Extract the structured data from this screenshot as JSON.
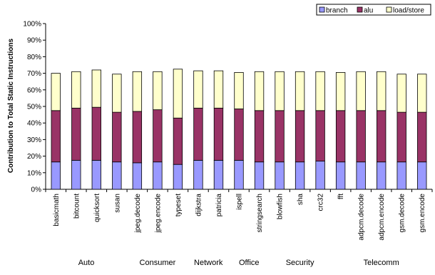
{
  "chart_data": {
    "type": "bar",
    "stacked": true,
    "ylabel": "Contribution to Total Static Instructions",
    "ylim": [
      0,
      100
    ],
    "yticks": [
      "0%",
      "10%",
      "20%",
      "30%",
      "40%",
      "50%",
      "60%",
      "70%",
      "80%",
      "90%",
      "100%"
    ],
    "grid": false,
    "legend_position": "top-right",
    "categories": [
      "basicmath",
      "bitcount",
      "quicksort",
      "susan",
      "jpeg.decode",
      "jpeg.encode",
      "typeset",
      "dijkstra",
      "patricia",
      "ispell",
      "stringsearch",
      "blowfish",
      "sha",
      "crc32",
      "fft",
      "adpcm.decode",
      "adpcm.encode",
      "gsm.decode",
      "gsm.encode"
    ],
    "groups": [
      {
        "label": "Auto",
        "start": 0,
        "end": 3
      },
      {
        "label": "Consumer",
        "start": 4,
        "end": 6
      },
      {
        "label": "Network",
        "start": 7,
        "end": 8
      },
      {
        "label": "Office",
        "start": 9,
        "end": 10
      },
      {
        "label": "Security",
        "start": 11,
        "end": 13
      },
      {
        "label": "Telecomm",
        "start": 14,
        "end": 18
      }
    ],
    "series": [
      {
        "name": "branch",
        "color": "#9999ff",
        "values": [
          16.5,
          17.5,
          17.5,
          16.5,
          16,
          16.5,
          15,
          17.5,
          17.5,
          17.5,
          16.5,
          16.5,
          16.5,
          17,
          16.5,
          16.5,
          16.5,
          16.5,
          16.5
        ]
      },
      {
        "name": "alu",
        "color": "#993366",
        "values": [
          31,
          31.5,
          32,
          30,
          31,
          31.5,
          28,
          31.5,
          31.5,
          31,
          31,
          31,
          31,
          30.5,
          31,
          31,
          31,
          30,
          30
        ]
      },
      {
        "name": "load/store",
        "color": "#ffffcc",
        "values": [
          22.5,
          22,
          22.5,
          23,
          24,
          23,
          29.5,
          22.5,
          22.5,
          22,
          23.5,
          23.5,
          23.5,
          23.5,
          23,
          23.5,
          23.5,
          23,
          23
        ]
      }
    ]
  }
}
